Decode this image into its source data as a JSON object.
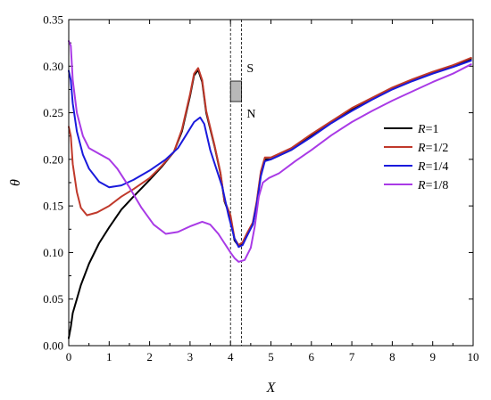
{
  "chart_data": {
    "type": "line",
    "title": "",
    "xlabel": "X",
    "ylabel": "θ",
    "xlim": [
      0,
      10
    ],
    "ylim": [
      0,
      0.35
    ],
    "xticks": [
      0,
      1,
      2,
      3,
      4,
      5,
      6,
      7,
      8,
      9,
      10
    ],
    "xtick_labels": [
      "0",
      "1",
      "2",
      "3",
      "4",
      "5",
      "6",
      "7",
      "8",
      "9",
      "10"
    ],
    "yticks": [
      0,
      0.05,
      0.1,
      0.15,
      0.2,
      0.25,
      0.3,
      0.35
    ],
    "ytick_labels": [
      "0.00",
      "0.05",
      "0.10",
      "0.15",
      "0.20",
      "0.25",
      "0.30",
      "0.35"
    ],
    "grid": false,
    "legend_position": "right",
    "legend_prefix": "R",
    "series": [
      {
        "name": "R=1",
        "label_value": "=1",
        "color": "#000000",
        "x": [
          0,
          0.05,
          0.1,
          0.2,
          0.3,
          0.5,
          0.75,
          1.0,
          1.3,
          1.6,
          2.0,
          2.3,
          2.6,
          2.8,
          3.0,
          3.1,
          3.2,
          3.3,
          3.4,
          3.6,
          3.75,
          3.85,
          4.0,
          4.1,
          4.2,
          4.3,
          4.4,
          4.55,
          4.65,
          4.75,
          4.85,
          5.0,
          5.5,
          6,
          6.5,
          7,
          7.5,
          8,
          8.5,
          9,
          9.5,
          9.95
        ],
        "y": [
          0.008,
          0.02,
          0.035,
          0.05,
          0.065,
          0.088,
          0.11,
          0.127,
          0.146,
          0.16,
          0.178,
          0.192,
          0.208,
          0.23,
          0.268,
          0.29,
          0.296,
          0.283,
          0.25,
          0.215,
          0.185,
          0.155,
          0.138,
          0.113,
          0.107,
          0.11,
          0.118,
          0.13,
          0.153,
          0.185,
          0.2,
          0.2,
          0.21,
          0.225,
          0.24,
          0.253,
          0.265,
          0.276,
          0.285,
          0.293,
          0.3,
          0.308
        ]
      },
      {
        "name": "R=1/2",
        "label_value": "=1/2",
        "color": "#c0392b",
        "x": [
          0,
          0.05,
          0.1,
          0.2,
          0.3,
          0.45,
          0.7,
          1.0,
          1.3,
          1.6,
          2.0,
          2.3,
          2.6,
          2.8,
          3.0,
          3.1,
          3.2,
          3.3,
          3.4,
          3.6,
          3.75,
          3.85,
          4.0,
          4.1,
          4.2,
          4.3,
          4.4,
          4.55,
          4.65,
          4.75,
          4.85,
          5.0,
          5.5,
          6,
          6.5,
          7,
          7.5,
          8,
          8.5,
          9,
          9.5,
          9.95
        ],
        "y": [
          0.235,
          0.225,
          0.195,
          0.165,
          0.148,
          0.14,
          0.143,
          0.15,
          0.16,
          0.168,
          0.18,
          0.193,
          0.208,
          0.232,
          0.27,
          0.292,
          0.298,
          0.285,
          0.252,
          0.216,
          0.186,
          0.156,
          0.14,
          0.115,
          0.108,
          0.111,
          0.12,
          0.132,
          0.155,
          0.187,
          0.202,
          0.202,
          0.212,
          0.227,
          0.241,
          0.255,
          0.266,
          0.277,
          0.286,
          0.294,
          0.301,
          0.309
        ]
      },
      {
        "name": "R=1/4",
        "label_value": "=1/4",
        "color": "#1a1adc",
        "x": [
          0,
          0.05,
          0.1,
          0.2,
          0.35,
          0.5,
          0.75,
          1.0,
          1.3,
          1.6,
          2.0,
          2.4,
          2.7,
          2.9,
          3.1,
          3.25,
          3.35,
          3.5,
          3.65,
          3.8,
          3.95,
          4.1,
          4.2,
          4.3,
          4.4,
          4.55,
          4.65,
          4.75,
          4.85,
          5.0,
          5.5,
          6,
          6.5,
          7,
          7.5,
          8,
          8.5,
          9,
          9.5,
          9.95
        ],
        "y": [
          0.295,
          0.285,
          0.26,
          0.23,
          0.205,
          0.19,
          0.176,
          0.17,
          0.172,
          0.178,
          0.188,
          0.2,
          0.212,
          0.226,
          0.24,
          0.245,
          0.238,
          0.21,
          0.19,
          0.17,
          0.14,
          0.115,
          0.106,
          0.108,
          0.117,
          0.13,
          0.152,
          0.182,
          0.198,
          0.2,
          0.21,
          0.224,
          0.239,
          0.252,
          0.264,
          0.275,
          0.284,
          0.292,
          0.299,
          0.306
        ]
      },
      {
        "name": "R=1/8",
        "label_value": "=1/8",
        "color": "#a93ae6",
        "x": [
          0,
          0.05,
          0.1,
          0.2,
          0.35,
          0.5,
          0.75,
          1.0,
          1.2,
          1.5,
          1.8,
          2.1,
          2.4,
          2.7,
          3.0,
          3.3,
          3.5,
          3.7,
          3.85,
          4.0,
          4.1,
          4.2,
          4.35,
          4.5,
          4.6,
          4.7,
          4.8,
          4.95,
          5.2,
          5.6,
          6,
          6.5,
          7,
          7.5,
          8,
          8.5,
          9,
          9.5,
          9.95
        ],
        "y": [
          0.327,
          0.322,
          0.285,
          0.25,
          0.225,
          0.212,
          0.206,
          0.2,
          0.19,
          0.17,
          0.148,
          0.13,
          0.12,
          0.122,
          0.128,
          0.133,
          0.13,
          0.12,
          0.11,
          0.1,
          0.094,
          0.09,
          0.092,
          0.105,
          0.128,
          0.16,
          0.175,
          0.18,
          0.185,
          0.198,
          0.21,
          0.226,
          0.24,
          0.252,
          0.263,
          0.273,
          0.283,
          0.292,
          0.302
        ]
      }
    ],
    "annotations": {
      "dashed_lines_x": [
        4.0,
        4.27
      ],
      "block": {
        "x": [
          4.0,
          4.27
        ],
        "y": [
          0.262,
          0.284
        ]
      },
      "block_top_label": "S",
      "block_bottom_label": "N",
      "block_color": "#b8b8b8"
    }
  }
}
